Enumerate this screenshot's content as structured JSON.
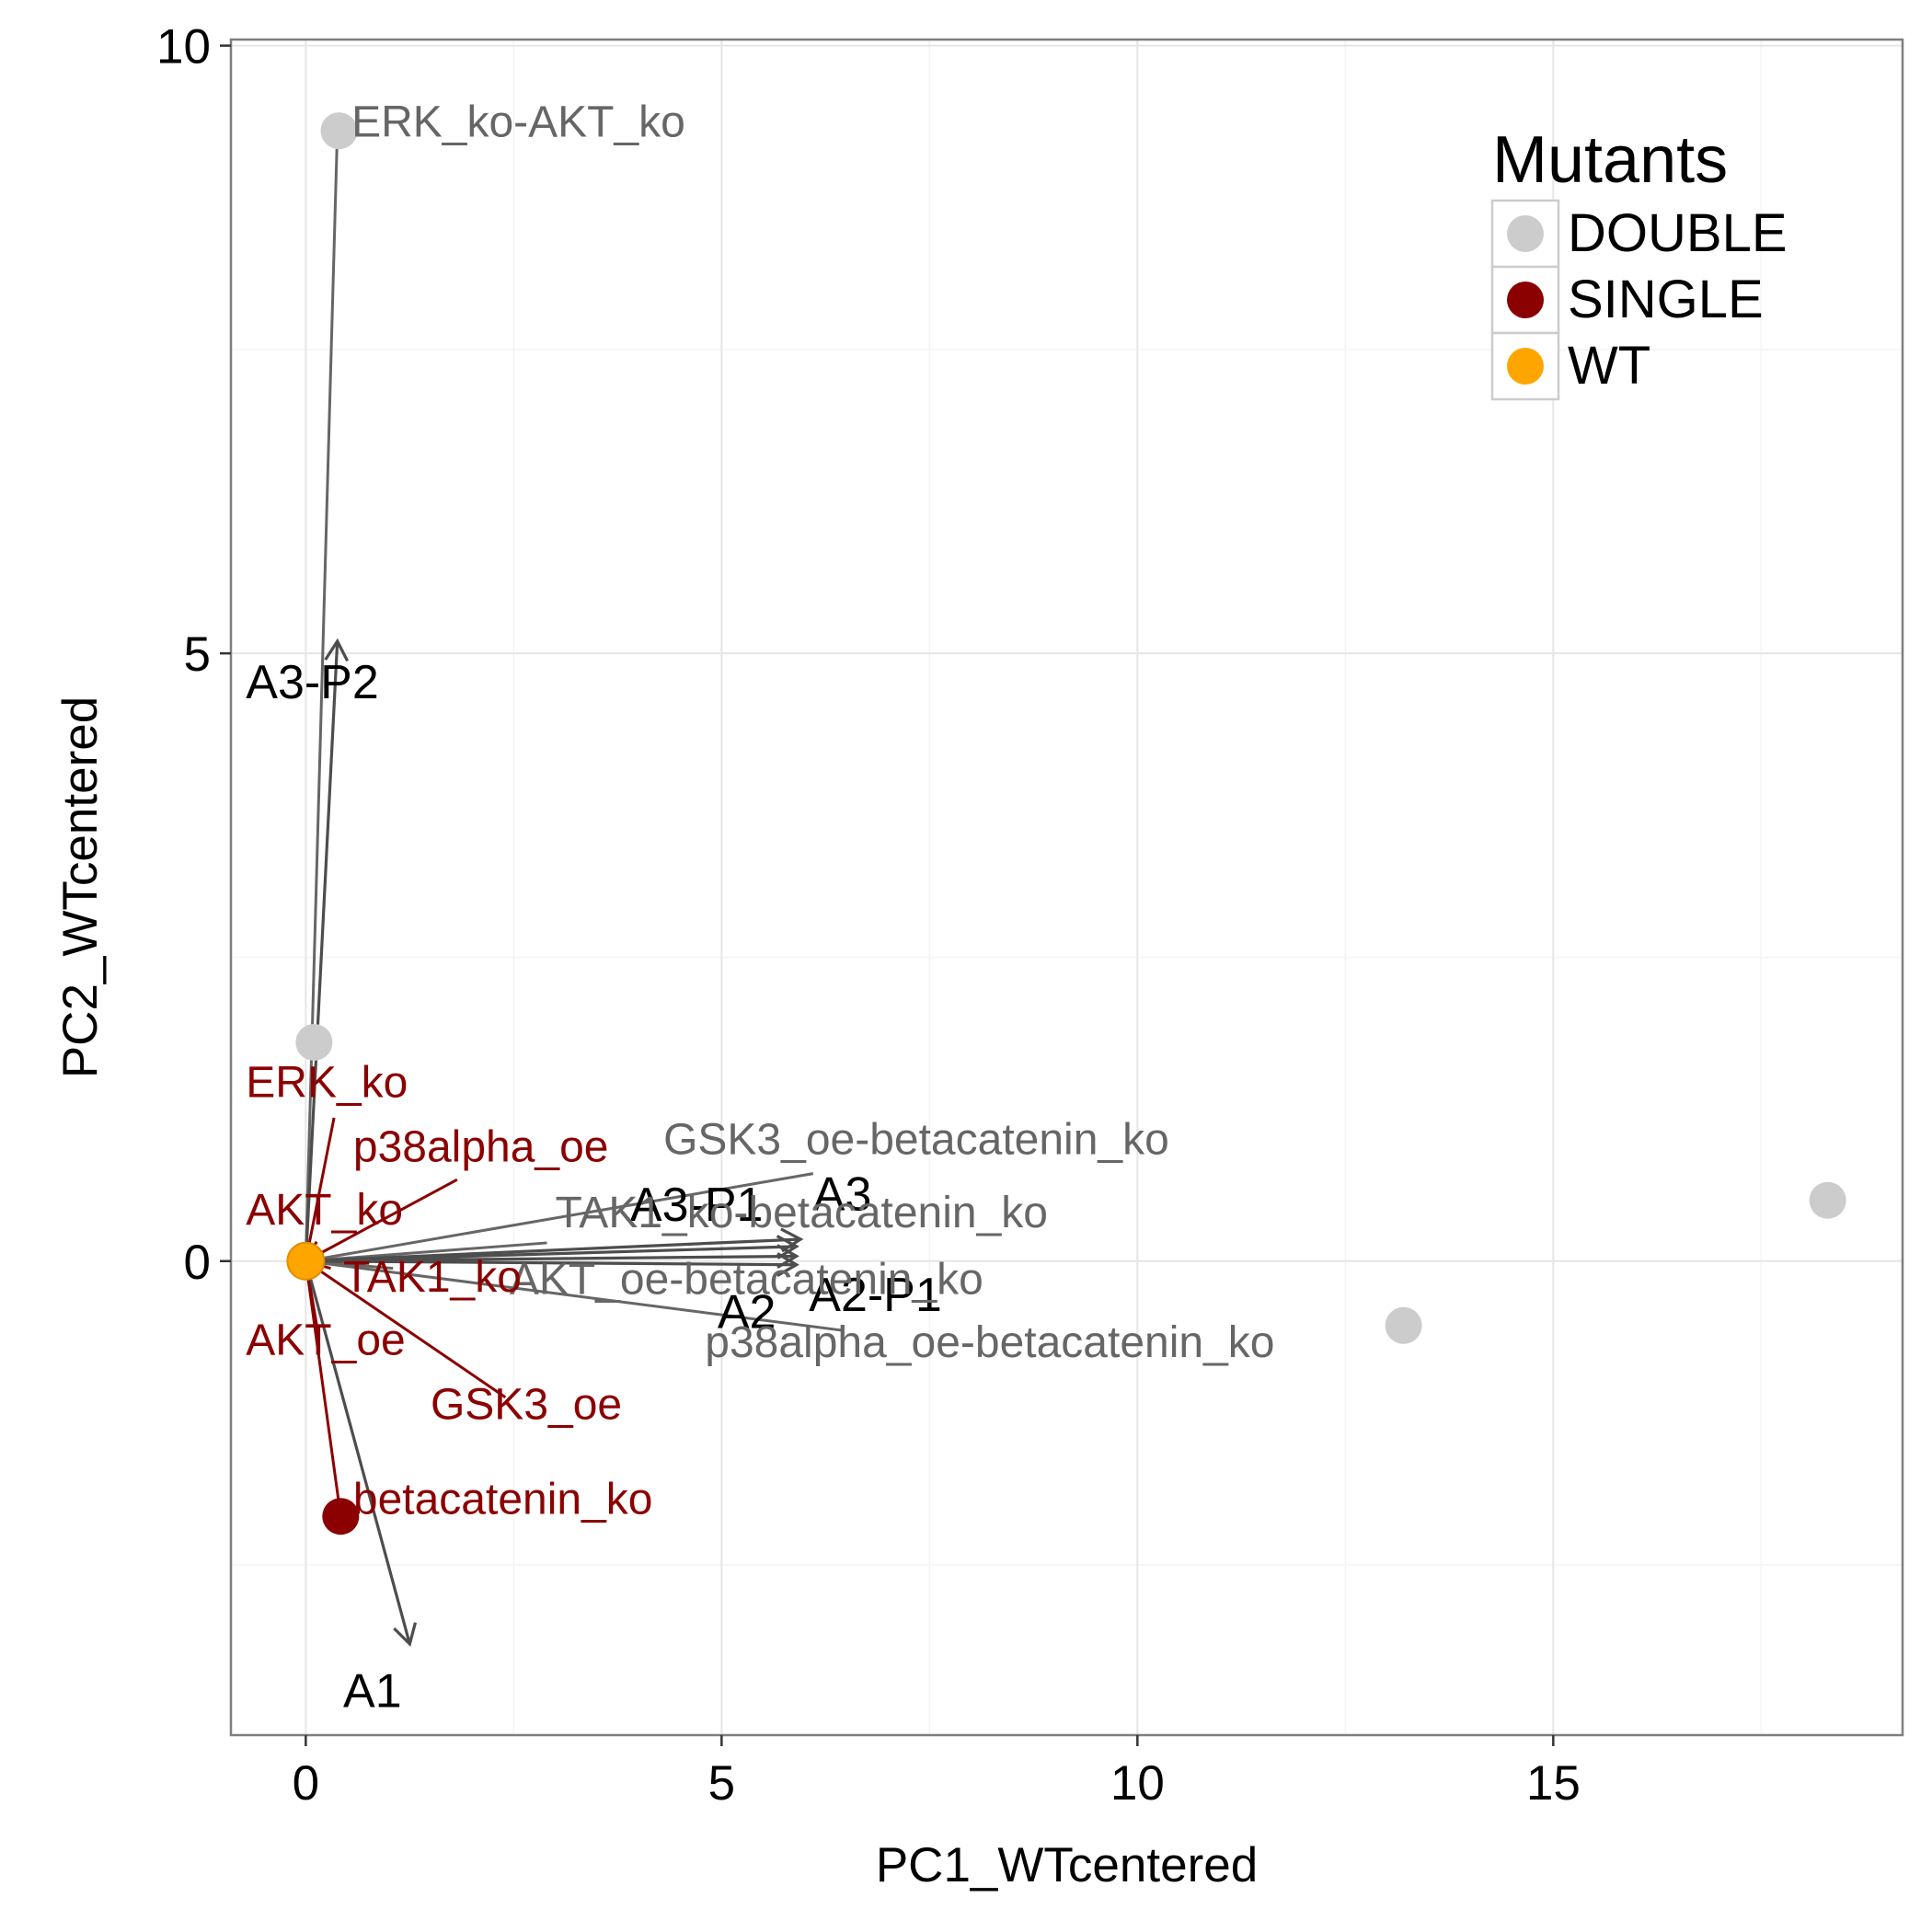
{
  "chart_data": {
    "type": "scatter",
    "title": "",
    "xlabel": "PC1_WTcentered",
    "ylabel": "PC2_WTcentered",
    "xlim": [
      -0.9,
      19.2
    ],
    "ylim": [
      -3.9,
      10.05
    ],
    "x_ticks": [
      0,
      5,
      10,
      15
    ],
    "y_ticks": [
      0,
      5,
      10
    ],
    "x_tick_labels": [
      "0",
      "5",
      "10",
      "15"
    ],
    "y_tick_labels": [
      "0",
      "5",
      "10"
    ],
    "grid": true,
    "legend": {
      "title": "Mutants",
      "position": "top-right",
      "entries": [
        {
          "name": "DOUBLE",
          "color": "#cccccc"
        },
        {
          "name": "SINGLE",
          "color": "#8b0000"
        },
        {
          "name": "WT",
          "color": "#ffa500"
        }
      ]
    },
    "points": [
      {
        "name": "ERK_ko-AKT_ko",
        "group": "DOUBLE",
        "x": 0.4,
        "y": 9.3
      },
      {
        "name": "",
        "group": "DOUBLE",
        "x": 0.1,
        "y": 1.8
      },
      {
        "name": "",
        "group": "DOUBLE",
        "x": 18.3,
        "y": 0.5
      },
      {
        "name": "",
        "group": "DOUBLE",
        "x": 13.2,
        "y": -0.53
      },
      {
        "name": "betacatenin_ko",
        "group": "SINGLE",
        "x": 0.42,
        "y": -2.1
      },
      {
        "name": "",
        "group": "WT",
        "x": 0.0,
        "y": 0.0
      }
    ],
    "point_labels": [
      {
        "text": "ERK_ko-AKT_ko",
        "group": "DOUBLE",
        "x": 0.55,
        "y": 9.25,
        "anchor_x": 0.38,
        "anchor_y": 9.3
      },
      {
        "text": "GSK3_oe-betacatenin_ko",
        "group": "DOUBLE",
        "x": 4.3,
        "y": 0.88,
        "anchor_x": 6.1,
        "anchor_y": 0.72
      },
      {
        "text": "TAK1_ko-betacatenin_ko",
        "group": "DOUBLE",
        "x": 3.0,
        "y": 0.28,
        "anchor_x": 2.9,
        "anchor_y": 0.15
      },
      {
        "text": "AKT_oe-betacatenin_ko",
        "group": "DOUBLE",
        "x": 2.45,
        "y": -0.27,
        "anchor_x": 1.05,
        "anchor_y": -0.06
      },
      {
        "text": "p38alpha_oe-betacatenin_ko",
        "group": "DOUBLE",
        "x": 4.8,
        "y": -0.79,
        "anchor_x": 6.45,
        "anchor_y": -0.57
      },
      {
        "text": "ERK_ko",
        "group": "SINGLE",
        "x": -0.72,
        "y": 1.35,
        "anchor_x": 0.34,
        "anchor_y": 1.18
      },
      {
        "text": "p38alpha_oe",
        "group": "SINGLE",
        "x": 0.57,
        "y": 0.82,
        "anchor_x": 1.82,
        "anchor_y": 0.67
      },
      {
        "text": "AKT_ko",
        "group": "SINGLE",
        "x": -0.72,
        "y": 0.3,
        "anchor_x": 0.13,
        "anchor_y": 0.16
      },
      {
        "text": "TAK1_ko",
        "group": "SINGLE",
        "x": 0.45,
        "y": -0.25,
        "anchor_x": 0.3,
        "anchor_y": -0.06
      },
      {
        "text": "AKT_oe",
        "group": "SINGLE",
        "x": -0.72,
        "y": -0.77,
        "anchor_x": 0.15,
        "anchor_y": -0.6
      },
      {
        "text": "GSK3_oe",
        "group": "SINGLE",
        "x": 1.5,
        "y": -1.3,
        "anchor_x": 2.4,
        "anchor_y": -1.12
      },
      {
        "text": "betacatenin_ko",
        "group": "SINGLE",
        "x": 0.57,
        "y": -2.08,
        "anchor_x": 0.42,
        "anchor_y": -2.1
      }
    ],
    "arrows": [
      {
        "label": "A3-P2",
        "x": 0.38,
        "y": 5.1,
        "label_x": -0.72,
        "label_y": 4.63
      },
      {
        "label": "A3",
        "x": 5.95,
        "y": 0.18,
        "label_x": 6.1,
        "label_y": 0.42
      },
      {
        "label": "A3-P1",
        "x": 5.9,
        "y": 0.12,
        "label_x": 3.9,
        "label_y": 0.33
      },
      {
        "label": "A2-P1",
        "x": 5.9,
        "y": 0.04,
        "label_x": 6.05,
        "label_y": -0.41
      },
      {
        "label": "A2",
        "x": 5.9,
        "y": -0.03,
        "label_x": 4.95,
        "label_y": -0.55
      },
      {
        "label": "A1",
        "x": 1.25,
        "y": -3.15,
        "label_x": 0.45,
        "label_y": -3.67
      }
    ]
  }
}
